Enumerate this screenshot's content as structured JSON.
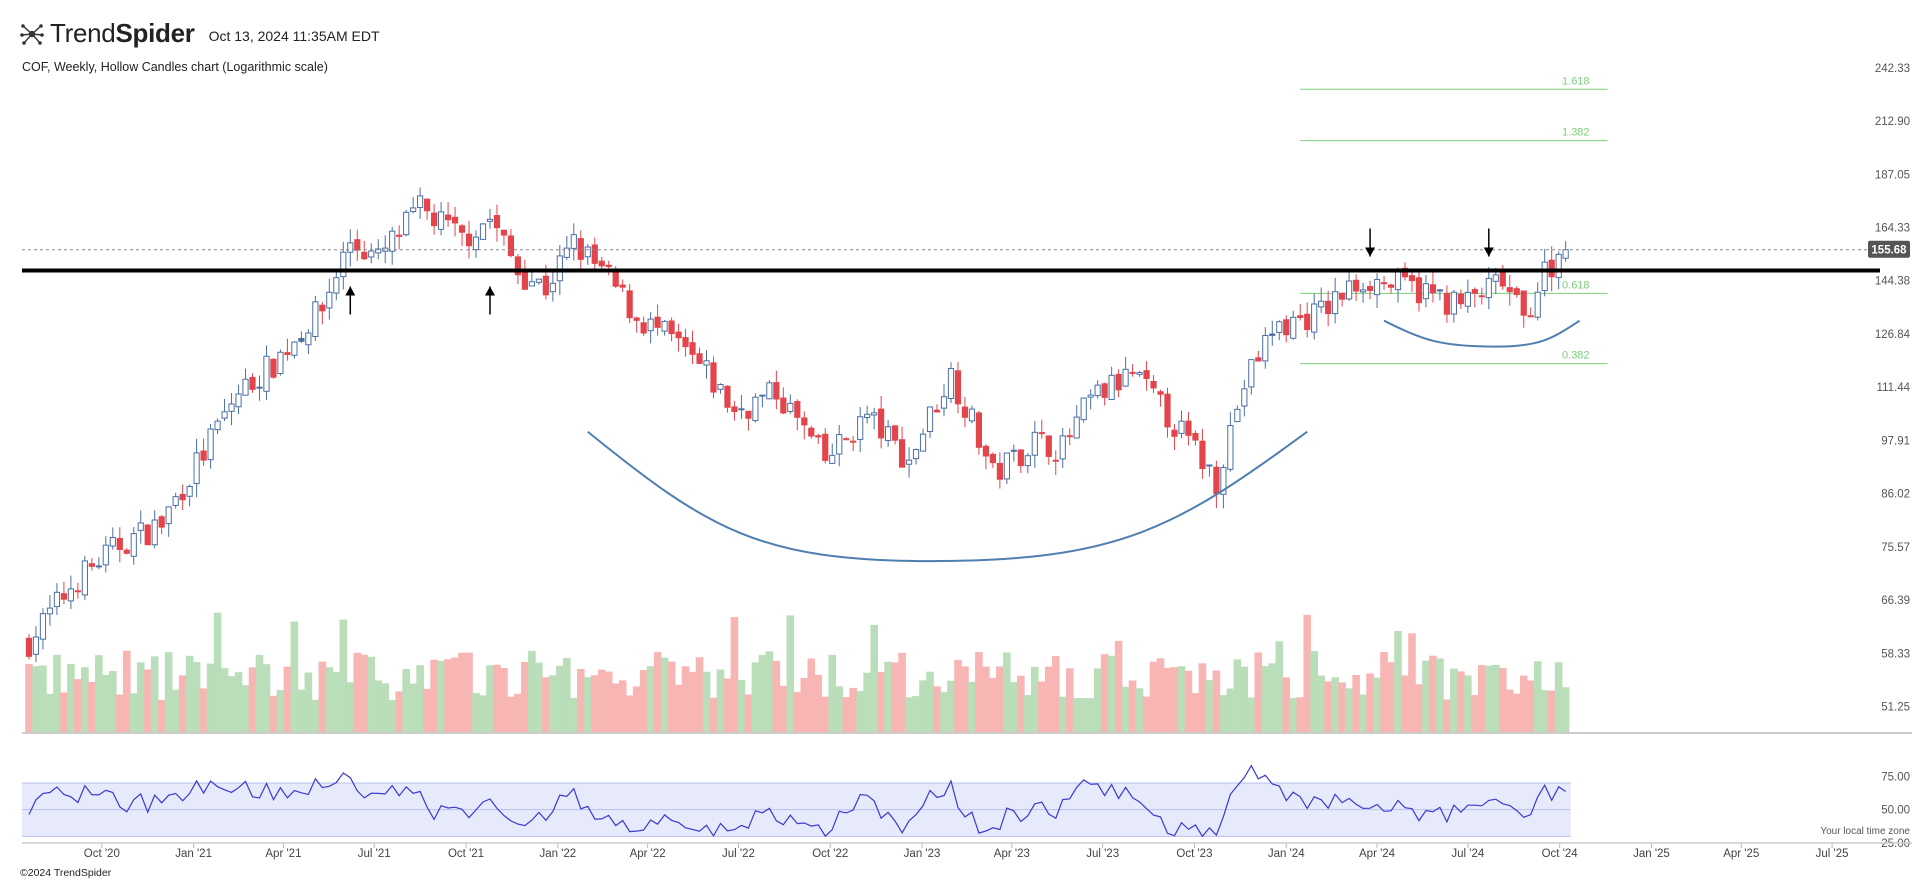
{
  "header": {
    "brand_light": "Trend",
    "brand_bold": "Spider",
    "timestamp": "Oct 13, 2024 11:35AM EDT",
    "subtitle": "COF, Weekly, Hollow Candles chart (Logarithmic scale)"
  },
  "footer": {
    "copyright": "©2024 TrendSpider",
    "timezone_note": "Your local time zone"
  },
  "colors": {
    "up": "#4a6fa5",
    "down": "#e2454b",
    "vol_up": "#b9deb9",
    "vol_down": "#f7b6b4",
    "fib": "#7dcf7d",
    "arc": "#4e7fb0",
    "rsi_line": "#3a3ad0",
    "rsi_band": "#e7eafb",
    "price_tag_bg": "#555555"
  },
  "chart_data": {
    "type": "candlestick",
    "title": "COF, Weekly, Hollow Candles chart (Logarithmic scale)",
    "y_scale": "log",
    "ylim": [
      49,
      250
    ],
    "last_price": "155.68",
    "y_ticks": [
      "242.33",
      "212.90",
      "187.05",
      "164.33",
      "144.38",
      "126.84",
      "111.44",
      "97.91",
      "86.02",
      "75.57",
      "66.39",
      "58.33",
      "51.25"
    ],
    "x_ticks": [
      "Oct '20",
      "Jan '21",
      "Apr '21",
      "Jul '21",
      "Oct '21",
      "Jan '22",
      "Apr '22",
      "Jul '22",
      "Oct '22",
      "Jan '23",
      "Apr '23",
      "Jul '23",
      "Oct '23",
      "Jan '24",
      "Apr '24",
      "Jul '24",
      "Oct '24",
      "Jan '25",
      "Apr '25",
      "Jul '25"
    ],
    "x_tick_dates": [
      "2020-10-01",
      "2021-01-01",
      "2021-04-01",
      "2021-07-01",
      "2021-10-01",
      "2022-01-01",
      "2022-04-01",
      "2022-07-01",
      "2022-10-01",
      "2023-01-01",
      "2023-04-01",
      "2023-07-01",
      "2023-10-01",
      "2024-01-01",
      "2024-04-01",
      "2024-07-01",
      "2024-10-01",
      "2025-01-01",
      "2025-04-01",
      "2025-07-01"
    ],
    "close_anchors": [
      [
        "2020-07-20",
        60
      ],
      [
        "2020-09-07",
        70
      ],
      [
        "2020-10-19",
        76
      ],
      [
        "2020-11-30",
        80
      ],
      [
        "2021-01-11",
        95
      ],
      [
        "2021-02-15",
        110
      ],
      [
        "2021-03-22",
        118
      ],
      [
        "2021-05-10",
        135
      ],
      [
        "2021-06-07",
        159
      ],
      [
        "2021-07-05",
        152
      ],
      [
        "2021-08-16",
        172
      ],
      [
        "2021-09-27",
        160
      ],
      [
        "2021-10-25",
        168
      ],
      [
        "2021-11-22",
        148
      ],
      [
        "2021-12-20",
        142
      ],
      [
        "2022-01-17",
        158
      ],
      [
        "2022-02-21",
        145
      ],
      [
        "2022-03-21",
        132
      ],
      [
        "2022-04-25",
        125
      ],
      [
        "2022-05-30",
        115
      ],
      [
        "2022-06-27",
        105
      ],
      [
        "2022-08-08",
        110
      ],
      [
        "2022-09-26",
        93
      ],
      [
        "2022-11-07",
        104
      ],
      [
        "2022-12-19",
        93
      ],
      [
        "2023-01-30",
        115
      ],
      [
        "2023-03-13",
        90
      ],
      [
        "2023-04-24",
        98
      ],
      [
        "2023-05-22",
        96
      ],
      [
        "2023-06-19",
        108
      ],
      [
        "2023-07-31",
        115
      ],
      [
        "2023-09-04",
        104
      ],
      [
        "2023-10-23",
        89
      ],
      [
        "2023-11-20",
        112
      ],
      [
        "2023-12-18",
        128
      ],
      [
        "2024-02-05",
        134
      ],
      [
        "2024-03-18",
        145
      ],
      [
        "2024-05-06",
        142
      ],
      [
        "2024-06-24",
        136
      ],
      [
        "2024-08-05",
        144
      ],
      [
        "2024-08-26",
        131
      ],
      [
        "2024-09-16",
        148
      ],
      [
        "2024-10-07",
        155.68
      ]
    ],
    "series": [
      {
        "name": "Volume",
        "type": "bar"
      },
      {
        "name": "RSI",
        "type": "line",
        "y_ticks": [
          "75.00",
          "50.00",
          "25.00"
        ],
        "ylim": [
          25,
          100
        ],
        "band": [
          30,
          70
        ]
      }
    ],
    "annotations": {
      "resistance_price": 148,
      "fibonacci": [
        {
          "label": "1.618",
          "price": 230
        },
        {
          "label": "1.382",
          "price": 203
        },
        {
          "label": "0.618",
          "price": 140
        },
        {
          "label": "0.382",
          "price": 118
        }
      ],
      "arrows": [
        {
          "date": "2021-06-07",
          "direction": "up"
        },
        {
          "date": "2021-10-25",
          "direction": "up"
        },
        {
          "date": "2024-03-25",
          "direction": "down"
        },
        {
          "date": "2024-07-22",
          "direction": "down"
        }
      ],
      "cup_arc": {
        "start": "2022-01-31",
        "bottom": "2023-01-09",
        "end": "2024-01-22",
        "start_price": 100,
        "bottom_price": 73,
        "end_price": 100
      },
      "handle_arc": {
        "start": "2024-04-08",
        "bottom": "2024-07-29",
        "end": "2024-10-21",
        "start_price": 131,
        "bottom_price": 123,
        "end_price": 131
      }
    }
  }
}
